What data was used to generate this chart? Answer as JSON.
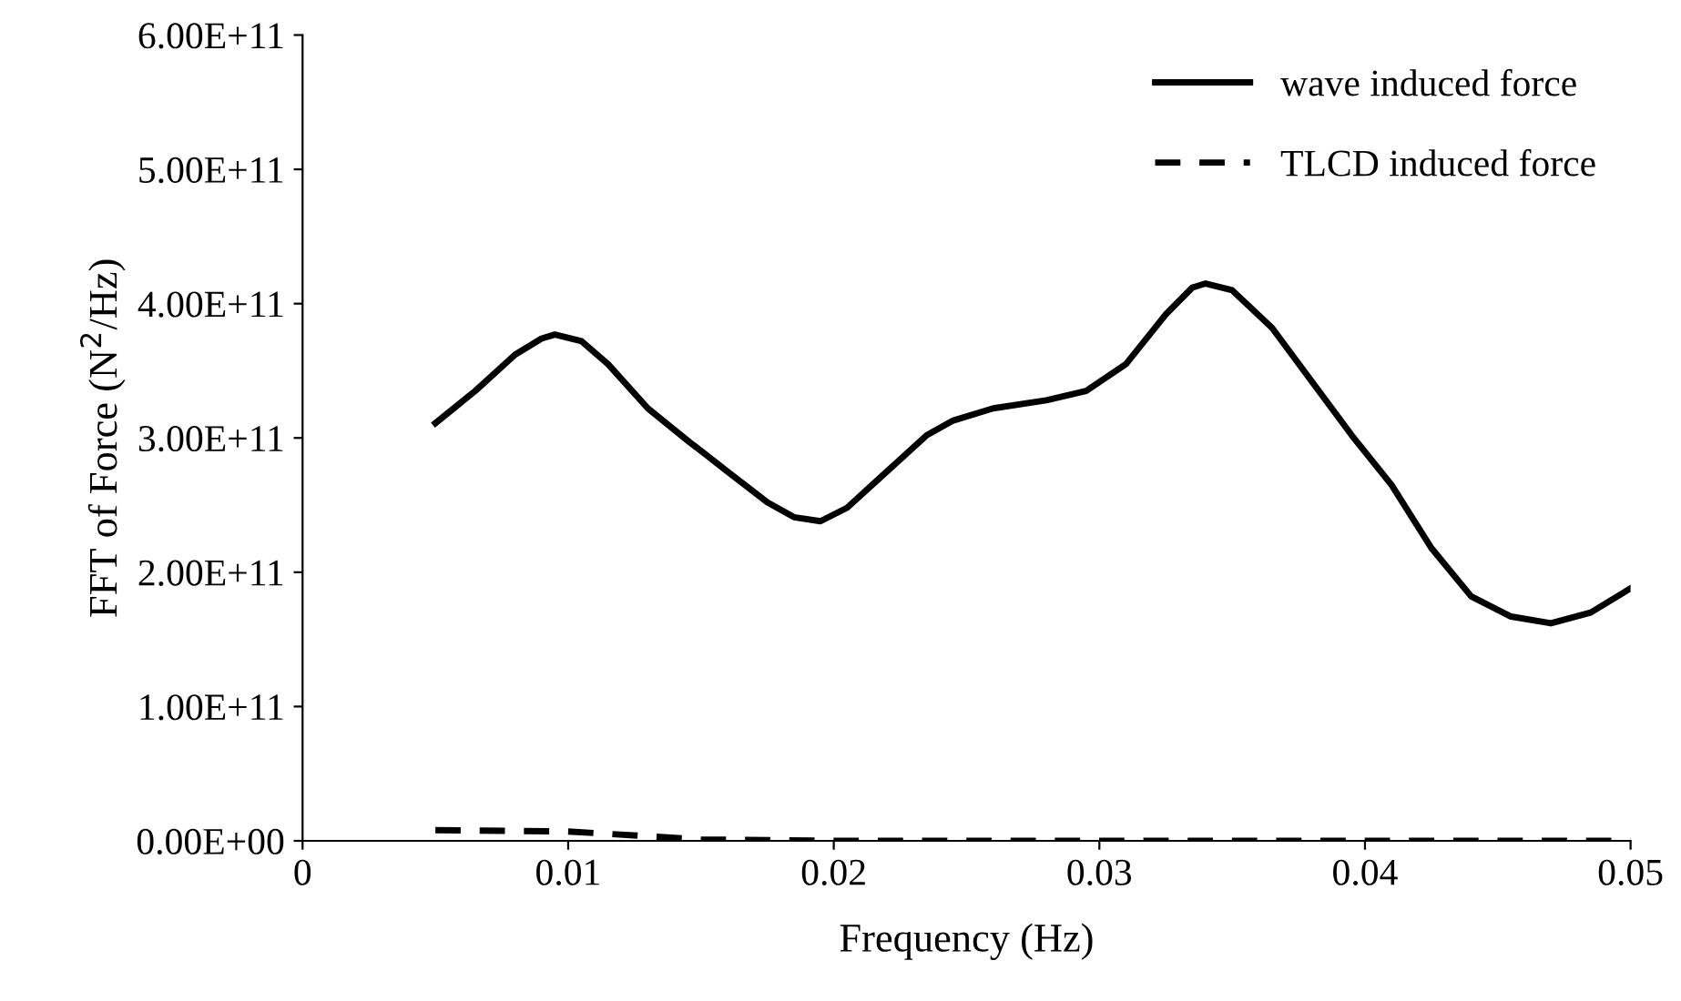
{
  "chart_data": {
    "type": "line",
    "xlabel": "Frequency (Hz)",
    "ylabel": "FFT of Force (N$^{2}$/Hz)",
    "xlim": [
      0,
      0.05
    ],
    "xticks": [
      0,
      0.01,
      0.02,
      0.03,
      0.04,
      0.05
    ],
    "ylim": [
      0,
      600000000000.0
    ],
    "yticks": [
      {
        "value": 0,
        "label": "0.00E+00"
      },
      {
        "value": 100000000000.0,
        "label": "1.00E+11"
      },
      {
        "value": 200000000000.0,
        "label": "2.00E+11"
      },
      {
        "value": 300000000000.0,
        "label": "3.00E+11"
      },
      {
        "value": 400000000000.0,
        "label": "4.00E+11"
      },
      {
        "value": 500000000000.0,
        "label": "5.00E+11"
      },
      {
        "value": 600000000000.0,
        "label": "6.00E+11"
      }
    ],
    "grid": false,
    "legend": "top right",
    "marker": "none",
    "series": [
      {
        "name": "wave induced force",
        "color": "#000000",
        "line_style": "solid",
        "x": [
          0.005,
          0.0065,
          0.008,
          0.009,
          0.0095,
          0.0105,
          0.0115,
          0.013,
          0.0145,
          0.016,
          0.0175,
          0.0185,
          0.0195,
          0.0205,
          0.022,
          0.0235,
          0.0245,
          0.026,
          0.028,
          0.0295,
          0.031,
          0.0325,
          0.0335,
          0.034,
          0.035,
          0.0365,
          0.038,
          0.0395,
          0.041,
          0.0425,
          0.044,
          0.0455,
          0.047,
          0.0485,
          0.05
        ],
        "values": [
          311000000000.0,
          335000000000.0,
          362000000000.0,
          374000000000.0,
          377000000000.0,
          372000000000.0,
          355000000000.0,
          322000000000.0,
          298000000000.0,
          275000000000.0,
          252000000000.0,
          241000000000.0,
          238000000000.0,
          248000000000.0,
          275000000000.0,
          302000000000.0,
          313000000000.0,
          322000000000.0,
          328000000000.0,
          335000000000.0,
          355000000000.0,
          392000000000.0,
          412000000000.0,
          415000000000.0,
          410000000000.0,
          382000000000.0,
          342000000000.0,
          302000000000.0,
          265000000000.0,
          218000000000.0,
          182000000000.0,
          167000000000.0,
          162000000000.0,
          170000000000.0,
          188000000000.0
        ]
      },
      {
        "name": "TLCD induced force",
        "color": "#000000",
        "line_style": "dashed",
        "x": [
          0.005,
          0.01,
          0.015,
          0.02,
          0.025,
          0.03,
          0.035,
          0.04,
          0.045,
          0.05
        ],
        "values": [
          8000000000.0,
          7000000000.0,
          1000000000.0,
          0,
          0,
          0,
          0,
          0,
          0,
          0
        ]
      }
    ]
  }
}
